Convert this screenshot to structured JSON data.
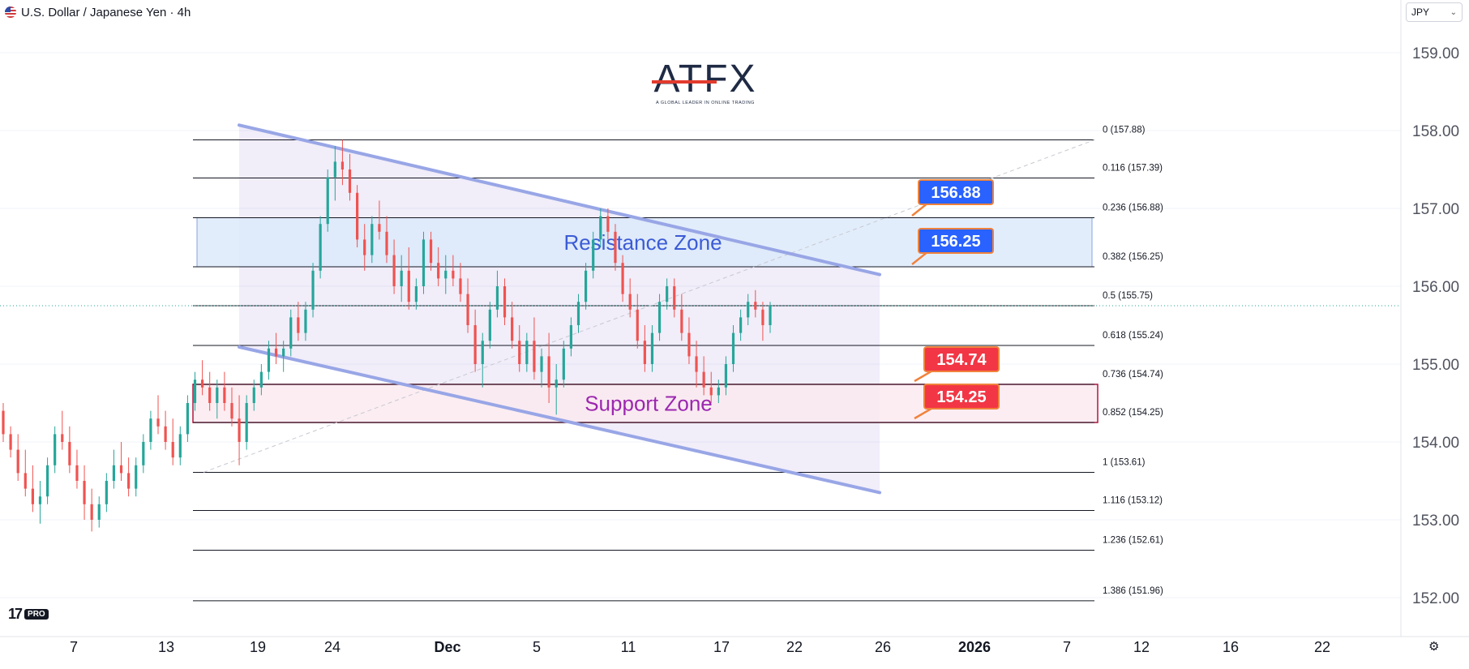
{
  "header": {
    "title": "U.S. Dollar / Japanese Yen · 4h",
    "currency": "JPY"
  },
  "logo": {
    "name": "ATFX",
    "tagline": "A GLOBAL LEADER IN ONLINE TRADING"
  },
  "branding": {
    "tv_mark": "17",
    "tv_badge": "PRO"
  },
  "colors": {
    "up": "#26a69a",
    "down": "#ef5350",
    "channel": "#98a6e6",
    "resistance_fill": "#dbe9fa",
    "support_fill": "#fbe9ef",
    "support_border": "#b0163e",
    "blue_label": "#2962ff",
    "red_label": "#f23645",
    "zone_resistance_text": "#3b5bd6",
    "zone_support_text": "#9c27b0"
  },
  "chart_data": {
    "type": "candlestick",
    "symbol": "USDJPY",
    "timeframe": "4h",
    "y_axis": {
      "min": 151.8,
      "max": 159.5,
      "ticks": [
        "152.00",
        "153.00",
        "154.00",
        "155.00",
        "156.00",
        "157.00",
        "158.00",
        "159.00"
      ]
    },
    "x_axis": {
      "ticks": [
        "7",
        "13",
        "19",
        "24",
        "Dec",
        "5",
        "11",
        "17",
        "22",
        "26",
        "2026",
        "7",
        "12",
        "16",
        "22"
      ],
      "bold_ticks": [
        "Dec",
        "2026"
      ]
    },
    "current_price": 155.75,
    "ohlc": [
      [
        154.4,
        154.5,
        154.0,
        154.1
      ],
      [
        154.1,
        154.2,
        153.8,
        153.9
      ],
      [
        153.9,
        154.1,
        153.5,
        153.6
      ],
      [
        153.6,
        153.9,
        153.3,
        153.4
      ],
      [
        153.4,
        153.7,
        153.1,
        153.2
      ],
      [
        153.2,
        153.5,
        152.95,
        153.3
      ],
      [
        153.3,
        153.8,
        153.2,
        153.7
      ],
      [
        153.7,
        154.2,
        153.6,
        154.1
      ],
      [
        154.1,
        154.4,
        153.9,
        154.0
      ],
      [
        154.0,
        154.2,
        153.6,
        153.7
      ],
      [
        153.7,
        153.9,
        153.4,
        153.5
      ],
      [
        153.5,
        153.7,
        153.0,
        153.2
      ],
      [
        153.2,
        153.4,
        152.85,
        153.0
      ],
      [
        153.0,
        153.3,
        152.9,
        153.2
      ],
      [
        153.2,
        153.6,
        153.1,
        153.5
      ],
      [
        153.5,
        153.9,
        153.4,
        153.7
      ],
      [
        153.7,
        154.0,
        153.5,
        153.6
      ],
      [
        153.6,
        153.8,
        153.3,
        153.4
      ],
      [
        153.4,
        153.8,
        153.3,
        153.7
      ],
      [
        153.7,
        154.1,
        153.6,
        154.0
      ],
      [
        154.0,
        154.4,
        153.9,
        154.3
      ],
      [
        154.3,
        154.6,
        154.1,
        154.2
      ],
      [
        154.2,
        154.4,
        153.9,
        154.0
      ],
      [
        154.0,
        154.3,
        153.7,
        153.8
      ],
      [
        153.8,
        154.2,
        153.7,
        154.1
      ],
      [
        154.1,
        154.6,
        154.0,
        154.5
      ],
      [
        154.5,
        154.9,
        154.4,
        154.8
      ],
      [
        154.8,
        155.05,
        154.6,
        154.7
      ],
      [
        154.7,
        154.9,
        154.4,
        154.5
      ],
      [
        154.5,
        154.8,
        154.3,
        154.7
      ],
      [
        154.7,
        154.9,
        154.4,
        154.5
      ],
      [
        154.5,
        154.7,
        154.2,
        154.3
      ],
      [
        154.3,
        154.6,
        153.7,
        154.0
      ],
      [
        154.0,
        154.6,
        153.9,
        154.5
      ],
      [
        154.5,
        154.8,
        154.4,
        154.7
      ],
      [
        154.7,
        155.0,
        154.6,
        154.9
      ],
      [
        154.9,
        155.3,
        154.8,
        155.2
      ],
      [
        155.2,
        155.4,
        155.0,
        155.1
      ],
      [
        155.1,
        155.3,
        154.9,
        155.2
      ],
      [
        155.2,
        155.7,
        155.1,
        155.6
      ],
      [
        155.6,
        155.8,
        155.3,
        155.4
      ],
      [
        155.4,
        155.8,
        155.3,
        155.7
      ],
      [
        155.7,
        156.3,
        155.6,
        156.2
      ],
      [
        156.2,
        156.9,
        156.1,
        156.8
      ],
      [
        156.8,
        157.5,
        156.7,
        157.4
      ],
      [
        157.4,
        157.8,
        157.1,
        157.6
      ],
      [
        157.6,
        157.88,
        157.3,
        157.5
      ],
      [
        157.5,
        157.7,
        157.1,
        157.2
      ],
      [
        157.2,
        157.3,
        156.5,
        156.6
      ],
      [
        156.6,
        156.8,
        156.2,
        156.4
      ],
      [
        156.4,
        156.9,
        156.3,
        156.8
      ],
      [
        156.8,
        157.1,
        156.6,
        156.7
      ],
      [
        156.7,
        156.9,
        156.3,
        156.4
      ],
      [
        156.4,
        156.6,
        155.9,
        156.0
      ],
      [
        156.0,
        156.4,
        155.8,
        156.2
      ],
      [
        156.2,
        156.5,
        155.7,
        155.8
      ],
      [
        155.8,
        156.1,
        155.7,
        156.0
      ],
      [
        156.0,
        156.7,
        155.9,
        156.6
      ],
      [
        156.6,
        156.7,
        156.2,
        156.3
      ],
      [
        156.3,
        156.5,
        156.0,
        156.1
      ],
      [
        156.1,
        156.4,
        155.9,
        156.2
      ],
      [
        156.2,
        156.4,
        156.0,
        156.1
      ],
      [
        156.1,
        156.3,
        155.8,
        155.9
      ],
      [
        155.9,
        156.1,
        155.4,
        155.5
      ],
      [
        155.5,
        155.7,
        154.9,
        155.0
      ],
      [
        155.0,
        155.4,
        154.7,
        155.3
      ],
      [
        155.3,
        155.8,
        155.2,
        155.7
      ],
      [
        155.7,
        156.2,
        155.6,
        156.0
      ],
      [
        156.0,
        156.1,
        155.5,
        155.6
      ],
      [
        155.6,
        155.8,
        155.2,
        155.3
      ],
      [
        155.3,
        155.5,
        154.9,
        155.0
      ],
      [
        155.0,
        155.4,
        154.9,
        155.3
      ],
      [
        155.3,
        155.6,
        154.8,
        154.9
      ],
      [
        154.9,
        155.2,
        154.7,
        155.1
      ],
      [
        155.1,
        155.4,
        154.5,
        154.7
      ],
      [
        154.7,
        155.0,
        154.35,
        154.8
      ],
      [
        154.8,
        155.3,
        154.7,
        155.2
      ],
      [
        155.2,
        155.6,
        155.1,
        155.5
      ],
      [
        155.5,
        155.9,
        155.4,
        155.8
      ],
      [
        155.8,
        156.3,
        155.7,
        156.2
      ],
      [
        156.2,
        156.7,
        156.1,
        156.6
      ],
      [
        156.6,
        157.0,
        156.5,
        156.9
      ],
      [
        156.9,
        157.0,
        156.6,
        156.7
      ],
      [
        156.7,
        156.8,
        156.2,
        156.3
      ],
      [
        156.3,
        156.4,
        155.8,
        155.9
      ],
      [
        155.9,
        156.1,
        155.6,
        155.7
      ],
      [
        155.7,
        155.9,
        155.2,
        155.3
      ],
      [
        155.3,
        155.5,
        154.9,
        155.0
      ],
      [
        155.0,
        155.5,
        154.9,
        155.4
      ],
      [
        155.4,
        155.9,
        155.3,
        155.8
      ],
      [
        155.8,
        156.1,
        155.7,
        156.0
      ],
      [
        156.0,
        156.1,
        155.6,
        155.7
      ],
      [
        155.7,
        155.9,
        155.3,
        155.4
      ],
      [
        155.4,
        155.6,
        155.0,
        155.1
      ],
      [
        155.1,
        155.3,
        154.7,
        154.9
      ],
      [
        154.9,
        155.1,
        154.6,
        154.7
      ],
      [
        154.7,
        154.9,
        154.5,
        154.6
      ],
      [
        154.6,
        154.8,
        154.5,
        154.7
      ],
      [
        154.7,
        155.1,
        154.6,
        155.0
      ],
      [
        155.0,
        155.5,
        154.9,
        155.4
      ],
      [
        155.4,
        155.7,
        155.3,
        155.6
      ],
      [
        155.6,
        155.9,
        155.5,
        155.8
      ],
      [
        155.8,
        155.95,
        155.6,
        155.7
      ],
      [
        155.7,
        155.8,
        155.3,
        155.5
      ],
      [
        155.5,
        155.8,
        155.4,
        155.75
      ]
    ],
    "fibonacci": [
      {
        "ratio": "0",
        "price": 157.88,
        "label": "0 (157.88)"
      },
      {
        "ratio": "0.116",
        "price": 157.39,
        "label": "0.116 (157.39)"
      },
      {
        "ratio": "0.236",
        "price": 156.88,
        "label": "0.236 (156.88)"
      },
      {
        "ratio": "0.382",
        "price": 156.25,
        "label": "0.382 (156.25)"
      },
      {
        "ratio": "0.5",
        "price": 155.75,
        "label": "0.5 (155.75)"
      },
      {
        "ratio": "0.618",
        "price": 155.24,
        "label": "0.618 (155.24)"
      },
      {
        "ratio": "0.736",
        "price": 154.74,
        "label": "0.736 (154.74)"
      },
      {
        "ratio": "0.852",
        "price": 154.25,
        "label": "0.852 (154.25)"
      },
      {
        "ratio": "1",
        "price": 153.61,
        "label": "1 (153.61)"
      },
      {
        "ratio": "1.116",
        "price": 153.12,
        "label": "1.116 (153.12)"
      },
      {
        "ratio": "1.236",
        "price": 152.61,
        "label": "1.236 (152.61)"
      },
      {
        "ratio": "1.386",
        "price": 151.96,
        "label": "1.386 (151.96)"
      }
    ],
    "zones": [
      {
        "name": "Resistance Zone",
        "top": 156.88,
        "bottom": 156.25
      },
      {
        "name": "Support Zone",
        "top": 154.74,
        "bottom": 154.25
      }
    ],
    "channel": {
      "upper": {
        "start": 158.07,
        "end": 156.15
      },
      "lower": {
        "start": 155.22,
        "end": 153.35
      }
    },
    "price_labels": [
      {
        "text": "156.88",
        "kind": "blue",
        "price": 156.88
      },
      {
        "text": "156.25",
        "kind": "blue",
        "price": 156.25
      },
      {
        "text": "154.74",
        "kind": "red",
        "price": 154.74
      },
      {
        "text": "154.25",
        "kind": "red",
        "price": 154.25
      }
    ]
  }
}
